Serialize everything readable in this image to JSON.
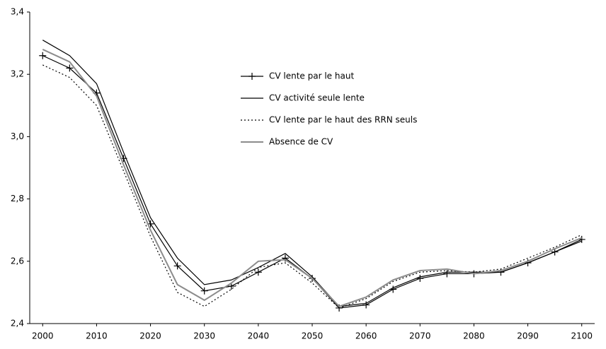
{
  "chart_data": {
    "type": "line",
    "x": [
      2000,
      2005,
      2010,
      2015,
      2020,
      2025,
      2030,
      2035,
      2040,
      2045,
      2050,
      2055,
      2060,
      2065,
      2070,
      2075,
      2080,
      2085,
      2090,
      2095,
      2100
    ],
    "xlim": [
      1997.6,
      2102.4
    ],
    "xticks": [
      2000,
      2010,
      2020,
      2030,
      2040,
      2050,
      2060,
      2070,
      2080,
      2090,
      2100
    ],
    "ylim": [
      2.4,
      3.4
    ],
    "yticks": [
      {
        "value": 2.4,
        "label": "2,4"
      },
      {
        "value": 2.6,
        "label": "2,6"
      },
      {
        "value": 2.8,
        "label": "2,8"
      },
      {
        "value": 3.0,
        "label": "3,0"
      },
      {
        "value": 3.2,
        "label": "3,2"
      },
      {
        "value": 3.4,
        "label": "3,4"
      }
    ],
    "series": [
      {
        "name": "CV lente par le haut",
        "color": "#000000",
        "marker": "plus",
        "dash": "solid",
        "values": [
          3.26,
          3.22,
          3.14,
          2.93,
          2.72,
          2.585,
          2.505,
          2.52,
          2.565,
          2.61,
          2.545,
          2.45,
          2.46,
          2.51,
          2.545,
          2.56,
          2.56,
          2.565,
          2.595,
          2.63,
          2.67
        ]
      },
      {
        "name": "CV activité seule lente",
        "color": "#000000",
        "marker": "none",
        "dash": "solid",
        "values": [
          3.31,
          3.26,
          3.17,
          2.95,
          2.74,
          2.61,
          2.525,
          2.54,
          2.58,
          2.625,
          2.55,
          2.455,
          2.465,
          2.515,
          2.55,
          2.565,
          2.565,
          2.565,
          2.595,
          2.63,
          2.665
        ]
      },
      {
        "name": "CV lente par le haut des RRN seuls",
        "color": "#000000",
        "marker": "none",
        "dash": "dotted",
        "values": [
          3.23,
          3.19,
          3.1,
          2.89,
          2.68,
          2.5,
          2.455,
          2.51,
          2.58,
          2.595,
          2.53,
          2.45,
          2.48,
          2.535,
          2.565,
          2.57,
          2.565,
          2.575,
          2.61,
          2.645,
          2.685
        ]
      },
      {
        "name": "Absence de CV",
        "color": "#8c8c8c",
        "marker": "none",
        "dash": "solid",
        "values": [
          3.28,
          3.24,
          3.13,
          2.91,
          2.7,
          2.525,
          2.475,
          2.53,
          2.6,
          2.605,
          2.545,
          2.455,
          2.485,
          2.54,
          2.57,
          2.575,
          2.56,
          2.57,
          2.6,
          2.64,
          2.675
        ]
      }
    ]
  }
}
